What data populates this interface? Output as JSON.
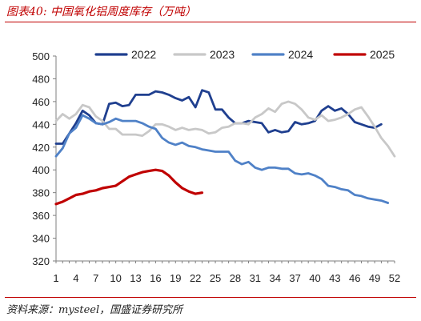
{
  "figure": {
    "title": "图表40:  中国氧化铝周度库存（万吨）",
    "source": "资料来源：mysteel，国盛证券研究所"
  },
  "chart_data": {
    "type": "line",
    "title": "",
    "xlabel": "",
    "ylabel": "",
    "ylim": [
      320,
      500
    ],
    "yticks": [
      320,
      340,
      360,
      380,
      400,
      420,
      440,
      460,
      480,
      500
    ],
    "xlim": [
      1,
      52
    ],
    "xticks": [
      1,
      4,
      7,
      10,
      13,
      16,
      19,
      22,
      25,
      28,
      31,
      34,
      37,
      40,
      43,
      46,
      49,
      52
    ],
    "grid": false,
    "legend": "top",
    "series": [
      {
        "name": "2022",
        "color": "#1f3f8f",
        "x": [
          1,
          2,
          3,
          4,
          5,
          6,
          7,
          8,
          9,
          10,
          11,
          12,
          13,
          14,
          15,
          16,
          17,
          18,
          19,
          20,
          21,
          22,
          23,
          24,
          25,
          26,
          27,
          28,
          29,
          30,
          31,
          32,
          33,
          34,
          35,
          36,
          37,
          38,
          39,
          40,
          41,
          42,
          43,
          44,
          45,
          46,
          47,
          48,
          49,
          50
        ],
        "values": [
          423,
          423,
          432,
          441,
          452,
          448,
          441,
          440,
          458,
          459,
          456,
          457,
          466,
          466,
          466,
          469,
          468,
          466,
          463,
          461,
          464,
          455,
          470,
          468,
          453,
          453,
          446,
          441,
          441,
          443,
          442,
          441,
          433,
          435,
          433,
          434,
          442,
          440,
          441,
          443,
          452,
          456,
          452,
          454,
          449,
          442,
          440,
          438,
          437,
          440
        ]
      },
      {
        "name": "2023",
        "color": "#c8c8c8",
        "x": [
          1,
          2,
          3,
          4,
          5,
          6,
          7,
          8,
          9,
          10,
          11,
          12,
          13,
          14,
          15,
          16,
          17,
          18,
          19,
          20,
          21,
          22,
          23,
          24,
          25,
          26,
          27,
          28,
          29,
          30,
          31,
          32,
          33,
          34,
          35,
          36,
          37,
          38,
          39,
          40,
          41,
          42,
          43,
          44,
          45,
          46,
          47,
          48,
          49,
          50,
          51,
          52
        ],
        "values": [
          443,
          449,
          445,
          449,
          457,
          455,
          447,
          443,
          436,
          436,
          431,
          431,
          431,
          430,
          434,
          440,
          440,
          438,
          435,
          437,
          435,
          436,
          435,
          432,
          433,
          437,
          438,
          441,
          441,
          440,
          446,
          449,
          454,
          451,
          458,
          460,
          458,
          453,
          446,
          444,
          448,
          443,
          444,
          446,
          449,
          453,
          455,
          447,
          438,
          428,
          421,
          412
        ]
      },
      {
        "name": "2024",
        "color": "#4f81c7",
        "x": [
          1,
          2,
          3,
          4,
          5,
          6,
          7,
          8,
          9,
          10,
          11,
          12,
          13,
          14,
          15,
          16,
          17,
          18,
          19,
          20,
          21,
          22,
          23,
          24,
          25,
          26,
          27,
          28,
          29,
          30,
          31,
          32,
          33,
          34,
          35,
          36,
          37,
          38,
          39,
          40,
          41,
          42,
          43,
          44,
          45,
          46,
          47,
          48,
          49,
          50,
          51
        ],
        "values": [
          412,
          419,
          432,
          437,
          448,
          445,
          441,
          440,
          442,
          445,
          443,
          443,
          443,
          441,
          438,
          436,
          428,
          424,
          422,
          424,
          421,
          420,
          418,
          417,
          416,
          416,
          416,
          408,
          405,
          407,
          402,
          400,
          402,
          402,
          401,
          401,
          397,
          396,
          397,
          395,
          392,
          386,
          385,
          383,
          382,
          378,
          377,
          375,
          374,
          373,
          371
        ]
      },
      {
        "name": "2025",
        "color": "#c00000",
        "x": [
          1,
          2,
          3,
          4,
          5,
          6,
          7,
          8,
          9,
          10,
          11,
          12,
          13,
          14,
          15,
          16,
          17,
          18,
          19,
          20,
          21,
          22,
          23
        ],
        "values": [
          370,
          372,
          375,
          378,
          379,
          381,
          382,
          384,
          385,
          386,
          390,
          394,
          396,
          398,
          399,
          400,
          399,
          395,
          389,
          384,
          381,
          379,
          380
        ]
      }
    ]
  }
}
